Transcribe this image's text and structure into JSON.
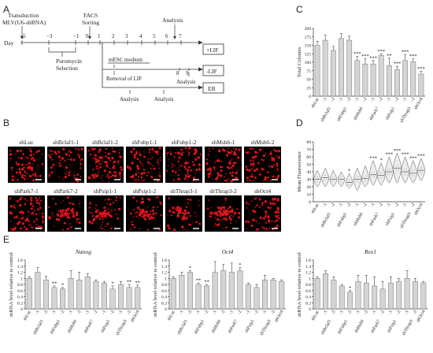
{
  "panel_letters": {
    "a": "A",
    "b": "B",
    "c": "C",
    "d": "D",
    "e": "E"
  },
  "timeline": {
    "transduction": [
      "Transduction",
      "MLV(U6-shRNA)"
    ],
    "facs": [
      "FACS",
      "Sorting"
    ],
    "analysis_top": "Analysis",
    "day_label": "Day",
    "day_ticks": [
      "−5",
      "−3",
      "−1",
      "0",
      "1",
      "2",
      "3",
      "4",
      "5",
      "6",
      "7"
    ],
    "puromycin": [
      "Puromycin",
      "Selection"
    ],
    "mesc_medium": "mESC medium",
    "removal_lif": "Removal of LIF",
    "ticks_89": [
      "8",
      "9"
    ],
    "analysis_mid": "Analysis",
    "analysis_low1": "Analysis",
    "analysis_low2": "Analysis",
    "boxes": [
      "+LIF",
      "-LIF",
      "EB"
    ]
  },
  "images": {
    "row1": [
      "shLuc",
      "shBclaf1-1",
      "shBclaf1-2",
      "shFubp1-1",
      "shFubp1-2",
      "shMsh6-1",
      "shMsh6-2"
    ],
    "row2": [
      "shPark7-1",
      "shPark7-2",
      "shPsip1-1",
      "shPsip1-2",
      "shThrap3-1",
      "shThrap3-2",
      "shOct4"
    ],
    "colors": {
      "background": "#000000",
      "colony": "#e0141c",
      "scale_bar": "#ffffff"
    }
  },
  "chart_data": [
    {
      "id": "C",
      "type": "bar",
      "ylabel": "Total Colonies",
      "ylim": [
        0,
        200
      ],
      "yticks": [
        0,
        25,
        50,
        75,
        100,
        125,
        150,
        175,
        200
      ],
      "categories": [
        "shLuc",
        "-1",
        "-2",
        "-1",
        "-2",
        "-1",
        "-2",
        "-1",
        "-2",
        "-1",
        "-2",
        "-1",
        "-2",
        "shOct4"
      ],
      "values": [
        150,
        165,
        135,
        170,
        165,
        105,
        95,
        95,
        120,
        90,
        78,
        105,
        102,
        65
      ],
      "errors": [
        12,
        15,
        12,
        15,
        12,
        12,
        15,
        10,
        5,
        22,
        10,
        18,
        8,
        8
      ],
      "significance": [
        "",
        "",
        "",
        "",
        "",
        "***",
        "***",
        "***",
        "***",
        "**",
        "***",
        "***",
        "***",
        "***"
      ],
      "group_labels": [
        "shBclaf1",
        "shFubp1",
        "shMsh6",
        "shPark7",
        "shPsip1",
        "shThrap3"
      ]
    },
    {
      "id": "D",
      "type": "violin",
      "ylabel": "Mean Fluorescence",
      "ylim": [
        0,
        80
      ],
      "yticks": [
        0,
        10,
        20,
        30,
        40,
        50,
        60,
        70,
        80
      ],
      "categories": [
        "shLuc",
        "-1",
        "-2",
        "-1",
        "-2",
        "-1",
        "-2",
        "-1",
        "-2",
        "-1",
        "-2",
        "-1",
        "-2",
        "shOct4"
      ],
      "medians": [
        30,
        32,
        30,
        30,
        26,
        30,
        31,
        36,
        35,
        40,
        45,
        40,
        38,
        42
      ],
      "ranges": [
        [
          20,
          42
        ],
        [
          20,
          45
        ],
        [
          20,
          42
        ],
        [
          20,
          40
        ],
        [
          18,
          38
        ],
        [
          15,
          45
        ],
        [
          20,
          48
        ],
        [
          22,
          55
        ],
        [
          22,
          52
        ],
        [
          25,
          60
        ],
        [
          25,
          65
        ],
        [
          25,
          60
        ],
        [
          25,
          55
        ],
        [
          28,
          58
        ]
      ],
      "significance": [
        "",
        "",
        "",
        "",
        "*",
        "",
        "",
        "***",
        "*",
        "***",
        "***",
        "***",
        "***",
        "***"
      ],
      "group_labels": [
        "shBclaf1",
        "shFubp1",
        "shMsh6",
        "shPark7",
        "shPsip1",
        "shThrap3"
      ]
    },
    {
      "id": "E1",
      "type": "bar",
      "title": "Nanog",
      "ylabel": "mRNA level relative to control",
      "ylim": [
        0,
        1.6
      ],
      "yticks": [
        0,
        0.2,
        0.4,
        0.6,
        0.8,
        1.0,
        1.2,
        1.4,
        1.6
      ],
      "categories": [
        "shLuc",
        "-1",
        "-2",
        "-1",
        "-2",
        "-1",
        "-2",
        "-1",
        "-2",
        "-1",
        "-2",
        "-1",
        "-2",
        "shOct4"
      ],
      "values": [
        1.0,
        1.2,
        0.95,
        0.7,
        0.65,
        1.0,
        0.95,
        1.05,
        0.9,
        0.85,
        0.65,
        0.8,
        0.7,
        0.7
      ],
      "errors": [
        0.05,
        0.15,
        0.12,
        0.05,
        0.05,
        0.25,
        0.25,
        0.1,
        0.05,
        0.05,
        0.1,
        0.1,
        0.1,
        0.08
      ],
      "significance": [
        "",
        "",
        "",
        "**",
        "*",
        "",
        "",
        "",
        "",
        "",
        "*",
        "",
        "**",
        "**"
      ],
      "group_labels": [
        "shBclaf1",
        "shFubp1",
        "shMsh6",
        "shPark7",
        "shPsip1",
        "shThrap3"
      ]
    },
    {
      "id": "E2",
      "type": "bar",
      "title": "Oct4",
      "ylabel": "mRNA level relative to control",
      "ylim": [
        0,
        1.6
      ],
      "yticks": [
        0,
        0.2,
        0.4,
        0.6,
        0.8,
        1.0,
        1.2,
        1.4,
        1.6
      ],
      "categories": [
        "shLuc",
        "-1",
        "-2",
        "-1",
        "-2",
        "-1",
        "-2",
        "-1",
        "-2",
        "-1",
        "-2",
        "-1",
        "-2",
        "shOct4"
      ],
      "values": [
        1.0,
        1.1,
        1.2,
        0.8,
        0.75,
        1.2,
        1.25,
        1.2,
        1.25,
        0.8,
        0.7,
        0.95,
        0.95,
        0.9
      ],
      "errors": [
        0.05,
        0.1,
        0.05,
        0.05,
        0.05,
        0.35,
        0.2,
        0.3,
        0.1,
        0.05,
        0.1,
        0.15,
        0.05,
        0.05
      ],
      "significance": [
        "",
        "",
        "*",
        "**",
        "**",
        "",
        "",
        "",
        "*",
        "",
        "",
        "",
        "",
        ""
      ],
      "group_labels": [
        "shBclaf1",
        "shFubp1",
        "shMsh6",
        "shPark7",
        "shPsip1",
        "shThrap3"
      ]
    },
    {
      "id": "E3",
      "type": "bar",
      "title": "Rex1",
      "ylabel": "mRNA level relative to control",
      "ylim": [
        0,
        1.6
      ],
      "yticks": [
        0,
        0.2,
        0.4,
        0.6,
        0.8,
        1.0,
        1.2,
        1.4,
        1.6
      ],
      "categories": [
        "shLuc",
        "-1",
        "-2",
        "-1",
        "-2",
        "-1",
        "-2",
        "-1",
        "-2",
        "-1",
        "-2",
        "-1",
        "-2",
        "shOct4"
      ],
      "values": [
        1.0,
        1.15,
        0.95,
        0.75,
        0.55,
        0.9,
        0.85,
        0.75,
        0.65,
        0.85,
        0.9,
        1.0,
        0.9,
        0.85
      ],
      "errors": [
        0.05,
        0.1,
        0.1,
        0.05,
        0.05,
        0.2,
        0.25,
        0.3,
        0.25,
        0.2,
        0.1,
        0.25,
        0.1,
        0.05
      ],
      "significance": [
        "",
        "",
        "",
        "",
        "*",
        "",
        "",
        "",
        "",
        "",
        "",
        "",
        "",
        ""
      ],
      "group_labels": [
        "shBclaf1",
        "shFubp1",
        "shMsh6",
        "shPark7",
        "shPsip1",
        "shThrap3"
      ]
    }
  ]
}
